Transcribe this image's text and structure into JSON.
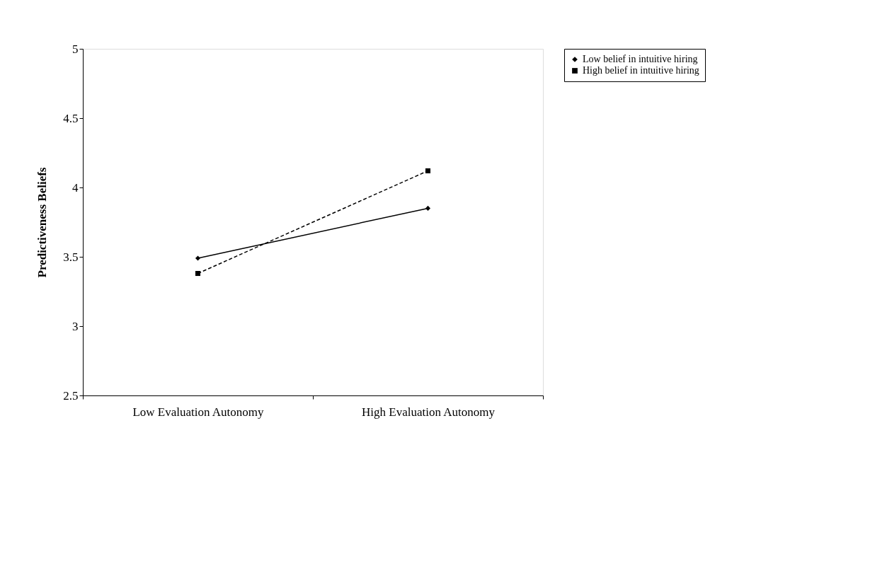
{
  "chart_data": {
    "type": "line",
    "ylabel": "Predictiveness Beliefs",
    "categories": [
      "Low Evaluation Autonomy",
      "High Evaluation Autonomy"
    ],
    "series": [
      {
        "name": "Low belief in intuitive hiring",
        "color": "#000000",
        "values": [
          3.49,
          3.85
        ],
        "marker": "diamond",
        "line_style": "solid"
      },
      {
        "name": "High belief in intuitive hiring",
        "color": "#000000",
        "values": [
          3.38,
          4.12
        ],
        "marker": "square",
        "line_style": "dashed"
      }
    ],
    "ylim": [
      2.5,
      5
    ],
    "yticks": [
      2.5,
      3,
      3.5,
      4,
      4.5,
      5
    ],
    "grid": false,
    "legend": "right"
  }
}
